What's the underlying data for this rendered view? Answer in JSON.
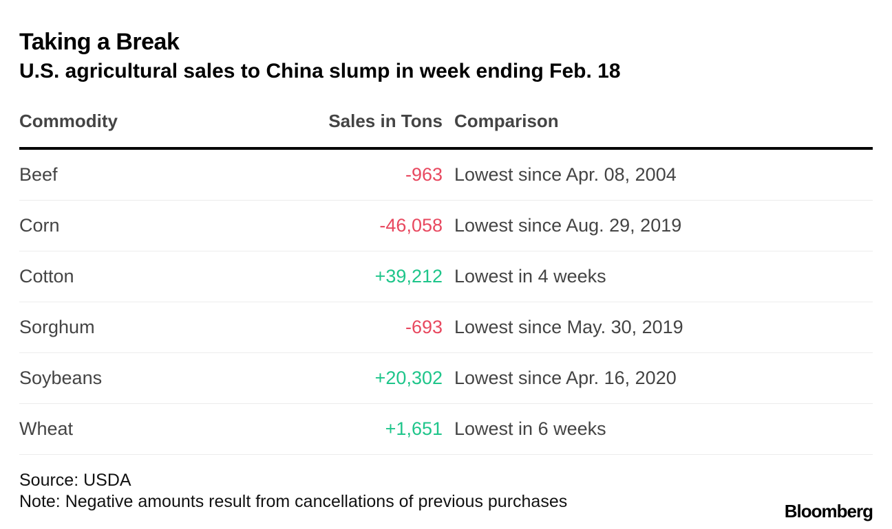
{
  "title": "Taking a Break",
  "subtitle": "U.S. agricultural sales to China slump in week ending Feb. 18",
  "chart_data": {
    "type": "table",
    "columns": [
      "Commodity",
      "Sales in Tons",
      "Comparison"
    ],
    "rows": [
      {
        "commodity": "Beef",
        "sales": "-963",
        "sales_value": -963,
        "comparison": "Lowest since Apr. 08, 2004"
      },
      {
        "commodity": "Corn",
        "sales": "-46,058",
        "sales_value": -46058,
        "comparison": "Lowest since Aug. 29, 2019"
      },
      {
        "commodity": "Cotton",
        "sales": "+39,212",
        "sales_value": 39212,
        "comparison": "Lowest in 4 weeks"
      },
      {
        "commodity": "Sorghum",
        "sales": "-693",
        "sales_value": -693,
        "comparison": "Lowest since May. 30, 2019"
      },
      {
        "commodity": "Soybeans",
        "sales": "+20,302",
        "sales_value": 20302,
        "comparison": "Lowest since Apr. 16, 2020"
      },
      {
        "commodity": "Wheat",
        "sales": "+1,651",
        "sales_value": 1651,
        "comparison": "Lowest in 6 weeks"
      }
    ]
  },
  "colors": {
    "negative": "#e8485f",
    "positive": "#1ec58a"
  },
  "footer": {
    "source": "Source: USDA",
    "note": "Note: Negative amounts result from cancellations of previous purchases",
    "brand": "Bloomberg"
  }
}
